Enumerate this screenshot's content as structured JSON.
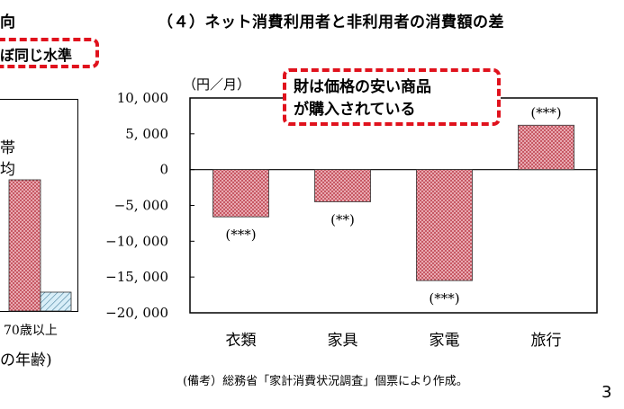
{
  "colors": {
    "callout_border": "#e0121d",
    "bar_fill": "#e8a8b0",
    "bar_pattern": "#b0202e",
    "hatch_fill": "#d8eef8",
    "hatch_line": "#2a6a8a"
  },
  "left_panel": {
    "heading_fragment": "向",
    "callout_fragment": "ぼ同じ水準",
    "legend_fragment_1": "帯",
    "legend_fragment_2": "均",
    "category_label": "70歳以上",
    "axis_label_fragment": "の年齢)",
    "chart_data": {
      "type": "bar",
      "categories": [
        "70歳以上"
      ],
      "note": "Partially cropped panel; only the rightmost category and bar tops are visible."
    }
  },
  "right_panel": {
    "title": "（４）ネット消費利用者と非利用者の消費額の差",
    "callout_line_1": "財は価格の安い商品",
    "callout_line_2": "が購入されている",
    "source_note": "(備考）総務省「家計消費状況調査」個票により作成。",
    "chart_data": {
      "type": "bar",
      "title": "（４）ネット消費利用者と非利用者の消費額の差",
      "ylabel": "（円／月）",
      "xlabel": "",
      "ylim": [
        -20000,
        10000
      ],
      "yticks": [
        10000,
        5000,
        0,
        -5000,
        -10000,
        -15000,
        -20000
      ],
      "ytick_labels": [
        "10, 000",
        "5, 000",
        "0",
        "−5, 000",
        "−10, 000",
        "−15, 000",
        "−20, 000"
      ],
      "categories": [
        "衣類",
        "家具",
        "家電",
        "旅行"
      ],
      "values": [
        -6600,
        -4500,
        -15500,
        6200
      ],
      "significance": [
        "(***)",
        "(**)",
        "(***)",
        "(***)"
      ],
      "grid": false
    }
  },
  "page_number": "3"
}
